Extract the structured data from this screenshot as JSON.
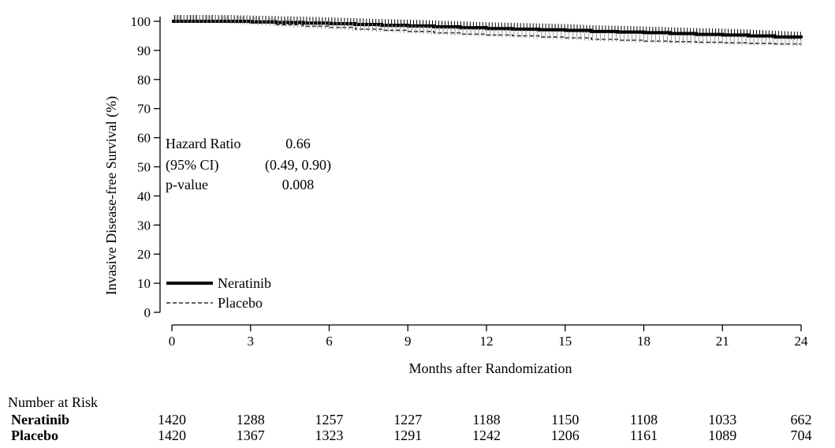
{
  "chart_data": {
    "type": "line",
    "xlabel": "Months after Randomization",
    "ylabel": "Invasive Disease-free Survival (%)",
    "xlim": [
      0,
      24
    ],
    "ylim": [
      0,
      100
    ],
    "x_ticks": [
      0,
      3,
      6,
      9,
      12,
      15,
      18,
      21,
      24
    ],
    "y_ticks": [
      0,
      10,
      20,
      30,
      40,
      50,
      60,
      70,
      80,
      90,
      100
    ],
    "grid": false,
    "legend_position": "bottom-left",
    "series": [
      {
        "name": "Neratinib",
        "line_style": "solid-thick",
        "color": "#000000",
        "x": [
          0,
          1,
          2,
          3,
          4,
          5,
          6,
          7,
          8,
          9,
          10,
          11,
          12,
          13,
          14,
          15,
          16,
          17,
          18,
          19,
          20,
          21,
          22,
          23,
          24
        ],
        "y": [
          100,
          100,
          100,
          99.8,
          99.6,
          99.4,
          99.2,
          98.9,
          98.6,
          98.4,
          98.1,
          97.8,
          97.5,
          97.3,
          97.1,
          96.9,
          96.5,
          96.3,
          96.1,
          95.8,
          95.5,
          95.3,
          95.0,
          94.6,
          94.2
        ]
      },
      {
        "name": "Placebo",
        "line_style": "dashed",
        "color": "#000000",
        "x": [
          0,
          1,
          2,
          3,
          4,
          5,
          6,
          7,
          8,
          9,
          10,
          11,
          12,
          13,
          14,
          15,
          16,
          17,
          18,
          19,
          20,
          21,
          22,
          23,
          24
        ],
        "y": [
          100,
          100,
          99.8,
          99.4,
          98.8,
          98.3,
          97.9,
          97.3,
          96.9,
          96.5,
          96.0,
          95.6,
          95.3,
          95.0,
          94.6,
          94.3,
          93.8,
          93.5,
          93.2,
          93.0,
          92.8,
          92.6,
          92.4,
          92.2,
          92.0
        ]
      }
    ],
    "annotations": {
      "hr_label": "Hazard Ratio",
      "hr_value": "0.66",
      "ci_label": "(95% CI)",
      "ci_value": "(0.49, 0.90)",
      "p_label": "p-value",
      "p_value": "0.008"
    },
    "number_at_risk": {
      "title": "Number at Risk",
      "rows": [
        {
          "name": "Neratinib",
          "values": [
            "1420",
            "1288",
            "1257",
            "1227",
            "1188",
            "1150",
            "1108",
            "1033",
            "662"
          ]
        },
        {
          "name": "Placebo",
          "values": [
            "1420",
            "1367",
            "1323",
            "1291",
            "1242",
            "1206",
            "1161",
            "1089",
            "704"
          ]
        }
      ]
    }
  }
}
